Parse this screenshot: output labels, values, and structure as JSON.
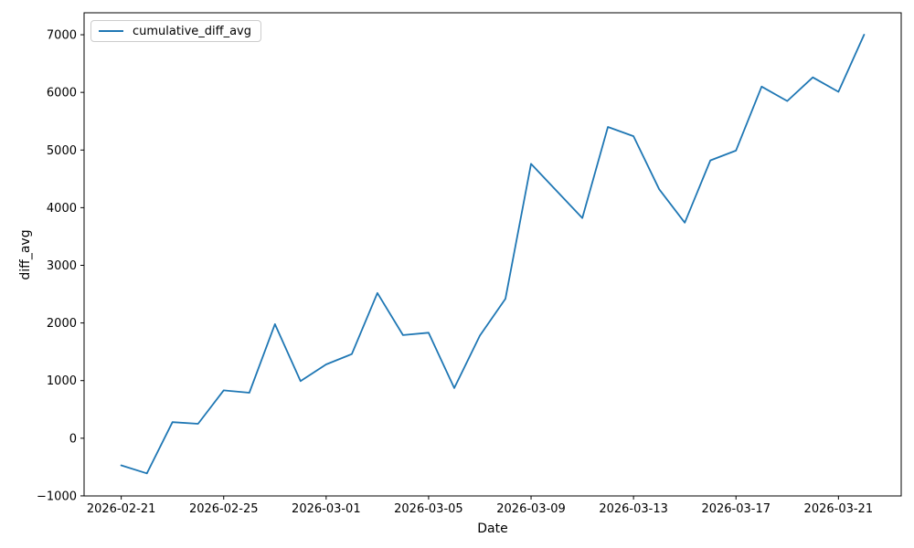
{
  "chart_data": {
    "type": "line",
    "title": "",
    "xlabel": "Date",
    "ylabel": "diff_avg",
    "grid": false,
    "legend_position": "upper left",
    "line_color": "#1f77b4",
    "x": [
      "2026-02-21",
      "2026-02-22",
      "2026-02-23",
      "2026-02-24",
      "2026-02-25",
      "2026-02-26",
      "2026-02-27",
      "2026-02-28",
      "2026-03-01",
      "2026-03-02",
      "2026-03-03",
      "2026-03-04",
      "2026-03-05",
      "2026-03-06",
      "2026-03-07",
      "2026-03-08",
      "2026-03-09",
      "2026-03-10",
      "2026-03-11",
      "2026-03-12",
      "2026-03-13",
      "2026-03-14",
      "2026-03-15",
      "2026-03-16",
      "2026-03-17",
      "2026-03-18",
      "2026-03-19",
      "2026-03-20",
      "2026-03-21",
      "2026-03-22"
    ],
    "series": [
      {
        "name": "cumulative_diff_avg",
        "values": [
          -470,
          -610,
          280,
          250,
          830,
          790,
          1980,
          990,
          1280,
          1460,
          2520,
          1790,
          1830,
          870,
          1780,
          2420,
          4760,
          4290,
          3820,
          5400,
          5240,
          4320,
          3740,
          4820,
          4990,
          6100,
          5850,
          6260,
          6010,
          7000
        ]
      }
    ],
    "x_tick_labels": [
      "2026-02-21",
      "2026-02-25",
      "2026-03-01",
      "2026-03-05",
      "2026-03-09",
      "2026-03-13",
      "2026-03-17",
      "2026-03-21"
    ],
    "y_tick_values": [
      -1000,
      0,
      1000,
      2000,
      3000,
      4000,
      5000,
      6000,
      7000
    ],
    "ylim": [
      -1001,
      7381
    ],
    "xlim_days": [
      -1.45,
      30.45
    ]
  }
}
